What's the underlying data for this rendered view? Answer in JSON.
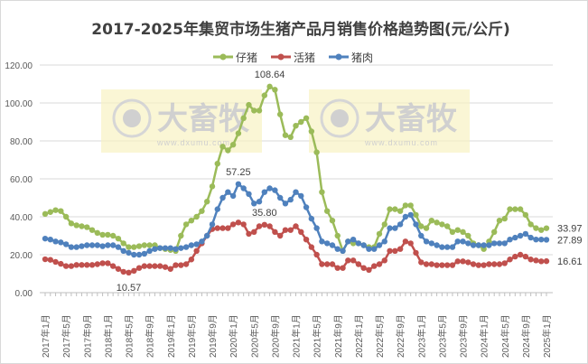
{
  "chart_data": {
    "type": "line",
    "title": "2017-2025年集贸市场生猪产品月销售价格趋势图(元/公斤)",
    "xlabel": "",
    "ylabel": "",
    "ylim": [
      0,
      120
    ],
    "yticks": [
      "0.00",
      "20.00",
      "40.00",
      "60.00",
      "80.00",
      "100.00",
      "120.00"
    ],
    "grid": true,
    "legend_position": "top",
    "x_tick_labels": [
      "2017年1月",
      "2017年5月",
      "2017年9月",
      "2018年1月",
      "2018年5月",
      "2018年9月",
      "2019年1月",
      "2019年5月",
      "2019年9月",
      "2020年1月",
      "2020年5月",
      "2020年9月",
      "2021年1月",
      "2021年5月",
      "2021年9月",
      "2022年1月",
      "2022年5月",
      "2022年9月",
      "2023年1月",
      "2023年5月",
      "2023年9月",
      "2024年1月",
      "2024年5月",
      "2024年9月",
      "2025年1月"
    ],
    "x_start": "2017年1月",
    "x_end": "2025年1月",
    "x_step": "月",
    "series": [
      {
        "name": "仔猪",
        "color": "#9bbb59",
        "values": [
          41.5,
          42.5,
          43.5,
          43,
          40,
          36.5,
          35.5,
          35,
          34.5,
          33,
          31.5,
          30.5,
          30.5,
          30,
          28.5,
          26,
          24,
          24,
          24.5,
          25,
          25,
          25,
          23.5,
          23,
          22.5,
          22,
          30,
          36,
          38,
          40,
          43,
          48,
          56,
          68,
          77,
          75,
          78,
          84,
          92,
          99,
          96,
          96,
          104,
          108.64,
          107,
          94,
          83,
          82,
          88,
          90,
          92,
          85,
          74,
          53,
          43,
          38,
          30,
          22,
          27,
          26,
          26,
          25,
          24,
          24,
          31,
          36,
          44,
          44,
          43,
          46,
          46,
          41,
          35,
          34,
          38,
          37,
          36,
          35,
          32,
          33,
          32,
          30,
          26,
          25,
          23,
          27,
          32,
          38,
          39,
          44,
          44,
          44,
          41,
          36,
          34,
          33,
          33.97
        ]
      },
      {
        "name": "活猪",
        "color": "#c0504d",
        "values": [
          17.6,
          17.3,
          16.2,
          15.2,
          14,
          14,
          14.6,
          14.6,
          14.6,
          14.6,
          15,
          15.5,
          15.5,
          14,
          12.5,
          11,
          10.57,
          11.5,
          13,
          14,
          14,
          14,
          14,
          13.5,
          12.5,
          14.5,
          14.5,
          15,
          17.5,
          22,
          26,
          30,
          33.5,
          34,
          34,
          34,
          36,
          37,
          36,
          31,
          32,
          35,
          35.8,
          35,
          32,
          30,
          33,
          33,
          35,
          32,
          28,
          24,
          20,
          15,
          15,
          15,
          13,
          13,
          17,
          17,
          15,
          13,
          12,
          14,
          15,
          17,
          22,
          22,
          23,
          27,
          26,
          21,
          16,
          15,
          15,
          14.5,
          14.5,
          14.5,
          14.5,
          16.5,
          16.5,
          16,
          15,
          14.5,
          14.5,
          15,
          15,
          15,
          15.5,
          17.5,
          19,
          20,
          19,
          17.5,
          17,
          16.5,
          16.61
        ]
      },
      {
        "name": "猪肉",
        "color": "#4f81bd",
        "values": [
          28.5,
          28,
          27,
          26.5,
          25.5,
          24,
          24,
          24.5,
          25,
          25,
          25,
          24.5,
          25,
          25,
          24,
          22,
          21,
          20,
          20,
          20.5,
          22,
          23,
          23.5,
          23.5,
          23.5,
          23,
          23.5,
          24,
          25,
          25.5,
          27,
          30,
          36,
          44,
          50,
          53,
          51,
          57.25,
          55,
          52,
          47,
          48,
          53,
          55,
          54,
          50,
          47,
          49,
          53,
          51,
          45,
          39,
          34,
          27,
          26,
          25,
          23,
          22,
          27,
          28,
          26,
          25,
          23,
          23,
          25,
          27,
          34,
          34,
          36,
          40,
          41,
          36,
          30,
          27,
          26,
          25,
          24,
          24,
          24,
          27,
          27,
          26,
          25,
          25,
          25,
          25,
          26,
          26,
          26,
          28,
          29,
          30,
          31,
          29,
          28,
          28,
          27.89
        ]
      }
    ],
    "data_labels": [
      {
        "series": "仔猪",
        "index": 43,
        "text": "108.64",
        "pos": "above"
      },
      {
        "series": "猪肉",
        "index": 37,
        "text": "57.25",
        "pos": "above"
      },
      {
        "series": "活猪",
        "index": 42,
        "text": "35.80",
        "pos": "above"
      },
      {
        "series": "活猪",
        "index": 16,
        "text": "10.57",
        "pos": "below"
      },
      {
        "series": "仔猪",
        "index": 96,
        "text": "33.97",
        "pos": "right"
      },
      {
        "series": "猪肉",
        "index": 96,
        "text": "27.89",
        "pos": "right"
      },
      {
        "series": "活猪",
        "index": 96,
        "text": "16.61",
        "pos": "right"
      }
    ]
  },
  "watermark": {
    "brand": "大畜牧",
    "url": "www.dxumu.com"
  }
}
